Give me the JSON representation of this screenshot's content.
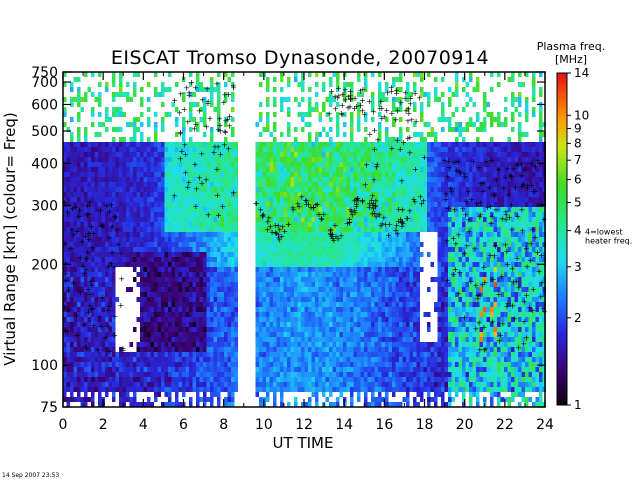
{
  "chart_data": {
    "type": "heatmap",
    "title": "EISCAT Tromso Dynasonde,  20070914",
    "xlabel": "UT TIME",
    "ylabel": "Virtual Range [km]   (colour= Freq)",
    "x_ticks": [
      "0",
      "2",
      "4",
      "6",
      "8",
      "10",
      "12",
      "14",
      "16",
      "18",
      "20",
      "22",
      "24"
    ],
    "xlim": [
      0,
      24
    ],
    "y_scale": "log",
    "ylim": [
      75,
      750
    ],
    "y_ticks": [
      "75",
      "100",
      "200",
      "300",
      "400",
      "500",
      "600",
      "700",
      "750"
    ],
    "data_gap_ut": [
      8.6,
      9.5
    ],
    "colorbar": {
      "title": "Plasma freq.",
      "unit": "[MHz]",
      "scale": "log",
      "range": [
        1,
        14
      ],
      "ticks": [
        "1",
        "2",
        "3",
        "4",
        "5",
        "6",
        "7",
        "8",
        "9",
        "10",
        "14"
      ],
      "marker_value": 4,
      "marker_symbol": "+",
      "marker_note": "4=lowest heater freq."
    },
    "colors": {
      "high_freq": "#e01010",
      "mid_freq": "#20c040",
      "low_freq": "#3060f0",
      "lowest_freq": "#1a0030",
      "marker": "#000000"
    },
    "timestamp": "14 Sep 2007 23:53"
  }
}
